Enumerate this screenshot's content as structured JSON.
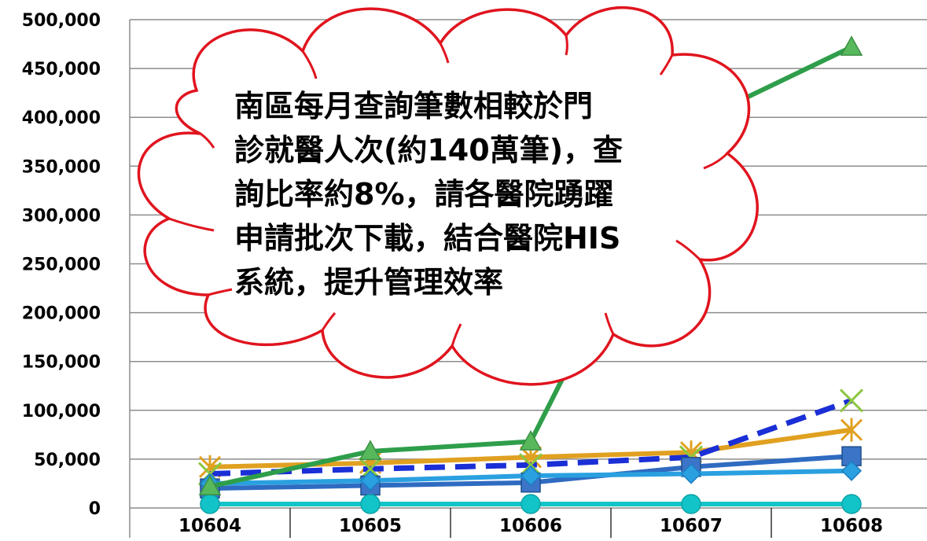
{
  "chart_data": {
    "type": "line",
    "categories": [
      "10604",
      "10605",
      "10606",
      "10607",
      "10608"
    ],
    "yticks": [
      "0",
      "50,000",
      "100,000",
      "150,000",
      "200,000",
      "250,000",
      "300,000",
      "350,000",
      "400,000",
      "450,000",
      "500,000"
    ],
    "ylim": [
      0,
      500000
    ],
    "grid": true,
    "series": [
      {
        "color": "#2E9E4A",
        "marker": "triangle",
        "dashed": false,
        "values": [
          22000,
          58000,
          68000,
          393000,
          472000
        ]
      },
      {
        "color": "#E0A020",
        "marker": "asterisk",
        "dashed": false,
        "values": [
          42000,
          46000,
          52000,
          57000,
          80000
        ]
      },
      {
        "color": "#1A2FD6",
        "marker": "x",
        "dashed": true,
        "values": [
          35000,
          40000,
          44000,
          52000,
          110000
        ]
      },
      {
        "color": "#2F6BC1",
        "marker": "square",
        "dashed": false,
        "values": [
          20000,
          23000,
          26000,
          42000,
          53000
        ]
      },
      {
        "color": "#2AA0E0",
        "marker": "diamond",
        "dashed": false,
        "values": [
          25000,
          28000,
          33000,
          35000,
          38000
        ]
      },
      {
        "color": "#12C4C8",
        "marker": "circle",
        "dashed": false,
        "values": [
          4000,
          4000,
          4000,
          4000,
          4000
        ]
      }
    ]
  },
  "annotation": {
    "lines": [
      "南區每月查詢筆數相較於門",
      "診就醫人次(約140萬筆)，查",
      "詢比率約8%，請各醫院踴躍",
      "申請批次下載，結合醫院HIS",
      "系統，提升管理效率"
    ],
    "outline_color": "#E0141E"
  }
}
